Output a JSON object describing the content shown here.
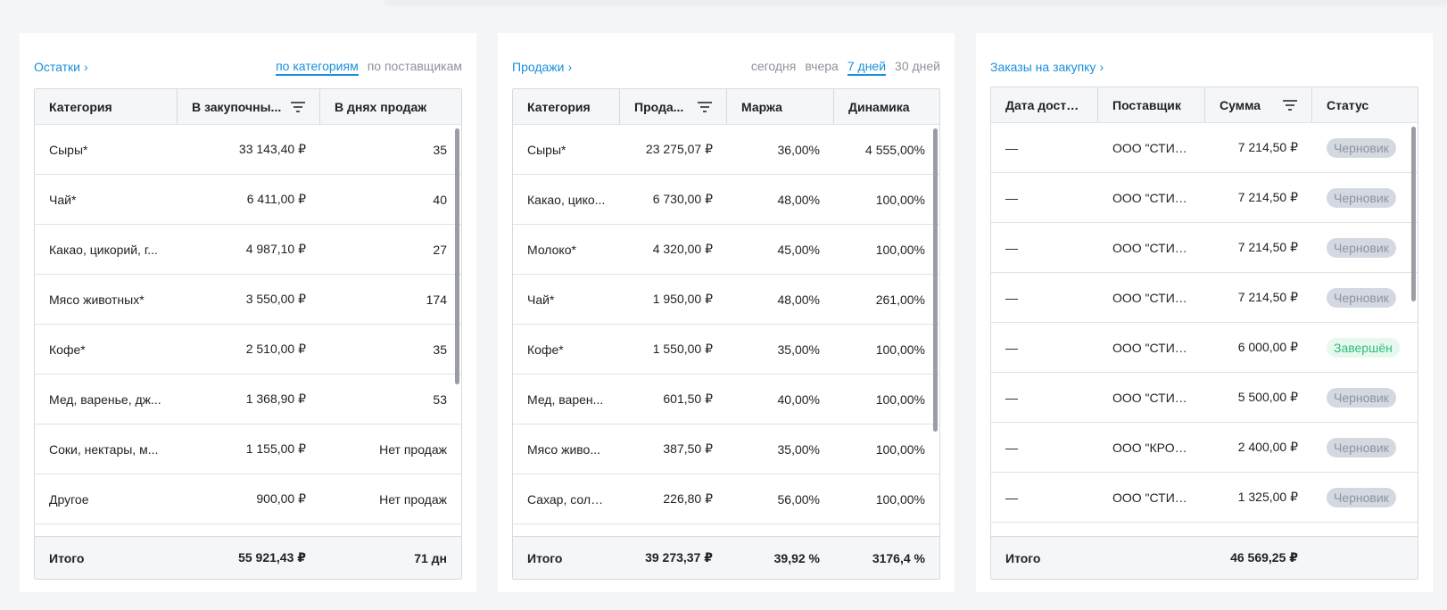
{
  "stock": {
    "title": "Остатки",
    "tabs": [
      "по категориям",
      "по поставщикам"
    ],
    "columns": [
      "Категория",
      "В закупочны...",
      "В днях продаж"
    ],
    "rows": [
      [
        "Сыры*",
        "33 143,40 ₽",
        "35"
      ],
      [
        "Чай*",
        "6 411,00 ₽",
        "40"
      ],
      [
        "Какао, цикорий, г...",
        "4 987,10 ₽",
        "27"
      ],
      [
        "Мясо животных*",
        "3 550,00 ₽",
        "174"
      ],
      [
        "Кофе*",
        "2 510,00 ₽",
        "35"
      ],
      [
        "Мед, варенье, дж...",
        "1 368,90 ₽",
        "53"
      ],
      [
        "Соки, нектары, м...",
        "1 155,00 ₽",
        "Нет продаж"
      ],
      [
        "Другое",
        "900,00 ₽",
        "Нет продаж"
      ]
    ],
    "total": [
      "Итого",
      "55 921,43 ₽",
      "71 дн"
    ]
  },
  "sales": {
    "title": "Продажи",
    "tabs": [
      "сегодня",
      "вчера",
      "7 дней",
      "30 дней"
    ],
    "columns": [
      "Категория",
      "Прода...",
      "Маржа",
      "Динамика"
    ],
    "rows": [
      [
        "Сыры*",
        "23 275,07 ₽",
        "36,00%",
        "4 555,00%"
      ],
      [
        "Какао, цико...",
        "6 730,00 ₽",
        "48,00%",
        "100,00%"
      ],
      [
        "Молоко*",
        "4 320,00 ₽",
        "45,00%",
        "100,00%"
      ],
      [
        "Чай*",
        "1 950,00 ₽",
        "48,00%",
        "261,00%"
      ],
      [
        "Кофе*",
        "1 550,00 ₽",
        "35,00%",
        "100,00%"
      ],
      [
        "Мед, варен...",
        "601,50 ₽",
        "40,00%",
        "100,00%"
      ],
      [
        "Мясо живо...",
        "387,50 ₽",
        "35,00%",
        "100,00%"
      ],
      [
        "Сахар, соль...",
        "226,80 ₽",
        "56,00%",
        "100,00%"
      ]
    ],
    "total": [
      "Итого",
      "39 273,37 ₽",
      "39,92 %",
      "3176,4 %"
    ]
  },
  "orders": {
    "title": "Заказы на закупку",
    "columns": [
      "Дата доставки",
      "Поставщик",
      "Сумма",
      "Статус"
    ],
    "rows": [
      [
        "—",
        "ООО \"СТИМ...",
        "7 214,50 ₽",
        "Черновик"
      ],
      [
        "—",
        "ООО \"СТИМ...",
        "7 214,50 ₽",
        "Черновик"
      ],
      [
        "—",
        "ООО \"СТИМ...",
        "7 214,50 ₽",
        "Черновик"
      ],
      [
        "—",
        "ООО \"СТИМ...",
        "7 214,50 ₽",
        "Черновик"
      ],
      [
        "—",
        "ООО \"СТИМ...",
        "6 000,00 ₽",
        "Завершён"
      ],
      [
        "—",
        "ООО \"СТИМ...",
        "5 500,00 ₽",
        "Черновик"
      ],
      [
        "—",
        "ООО \"КРОТ...",
        "2 400,00 ₽",
        "Черновик"
      ],
      [
        "—",
        "ООО \"СТИМ...",
        "1 325,00 ₽",
        "Черновик"
      ]
    ],
    "total": [
      "Итого",
      "46 569,25 ₽"
    ]
  },
  "colors": {
    "accent": "#1a8fdc",
    "draft_bg": "#d4d9e1",
    "done_text": "#2fc07a"
  }
}
